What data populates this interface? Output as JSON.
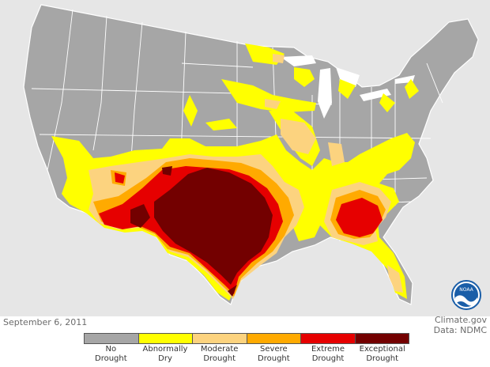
{
  "map": {
    "date": "September 6, 2011",
    "credit_line1": "Climate.gov",
    "credit_line2": "Data: NDMC",
    "logo_text": "NOAA"
  },
  "legend": [
    {
      "line1": "No",
      "line2": "Drought",
      "color": "#a6a6a6"
    },
    {
      "line1": "Abnormally",
      "line2": "Dry",
      "color": "#ffff00"
    },
    {
      "line1": "Moderate",
      "line2": "Drought",
      "color": "#fcd37f"
    },
    {
      "line1": "Severe",
      "line2": "Drought",
      "color": "#ffaa00"
    },
    {
      "line1": "Extreme",
      "line2": "Drought",
      "color": "#e60000"
    },
    {
      "line1": "Exceptional",
      "line2": "Drought",
      "color": "#730000"
    }
  ],
  "colors": {
    "background_land": "#e6e6e6",
    "state_borders": "#ffffff"
  }
}
